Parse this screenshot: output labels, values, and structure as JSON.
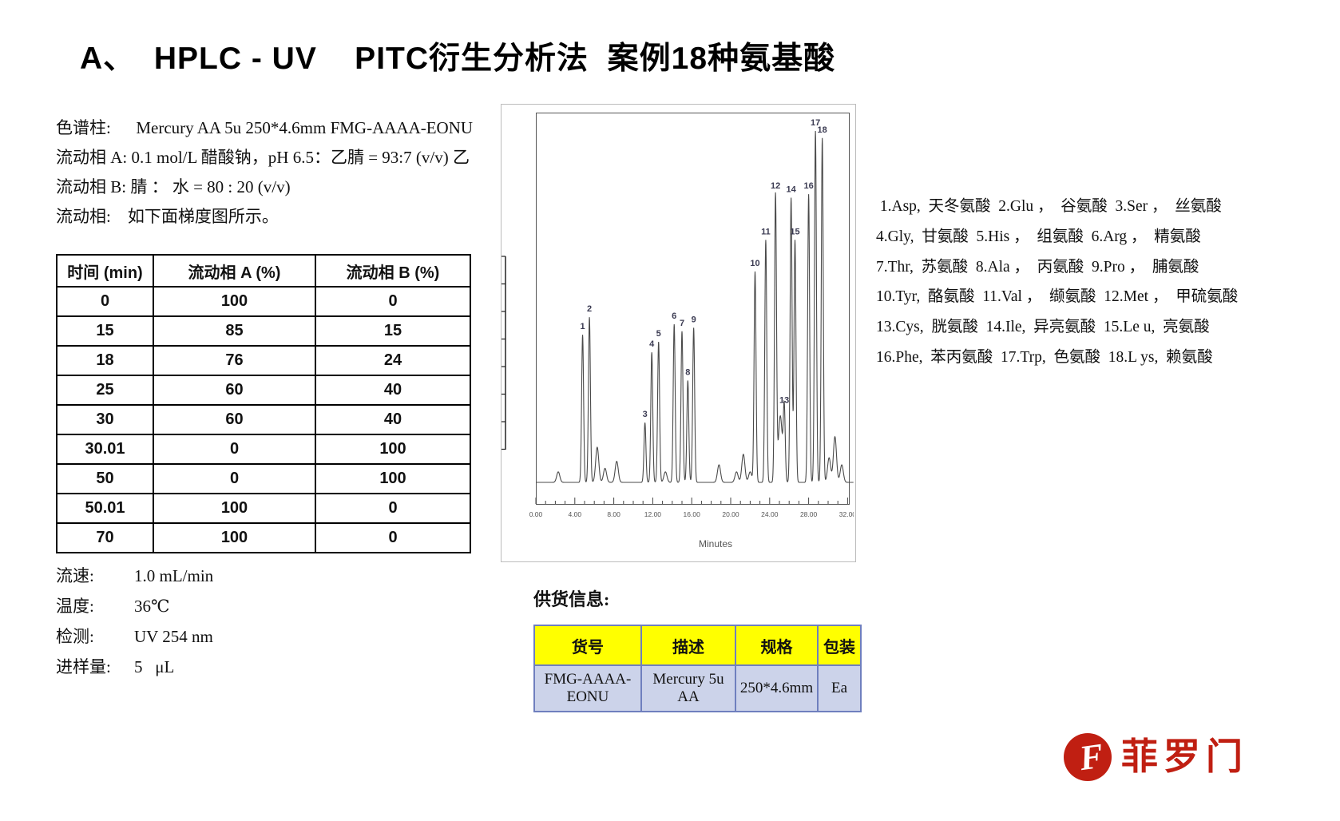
{
  "title": "A、  HPLC - UV    PITC衍生分析法  案例18种氨基酸",
  "conditions_top": [
    "色谱柱:      Mercury AA 5u 250*4.6mm FMG-AAAA-EONU",
    "流动相 A: 0.1 mol/L 醋酸钠，pH 6.5：乙腈 = 93:7 (v/v) 乙",
    "流动相 B: 腈 ： 水 = 80 : 20 (v/v)",
    "流动相:    如下面梯度图所示。"
  ],
  "gradient_table": {
    "headers": [
      "时间 (min)",
      "流动相 A (%)",
      "流动相 B (%)"
    ],
    "rows": [
      [
        "0",
        "100",
        "0"
      ],
      [
        "15",
        "85",
        "15"
      ],
      [
        "18",
        "76",
        "24"
      ],
      [
        "25",
        "60",
        "40"
      ],
      [
        "30",
        "60",
        "40"
      ],
      [
        "30.01",
        "0",
        "100"
      ],
      [
        "50",
        "0",
        "100"
      ],
      [
        "50.01",
        "100",
        "0"
      ],
      [
        "70",
        "100",
        "0"
      ]
    ]
  },
  "conditions_bottom": [
    {
      "label": "流速:",
      "value": "1.0 mL/min"
    },
    {
      "label": "温度:",
      "value": "36℃"
    },
    {
      "label": "检测:",
      "value": "UV 254 nm"
    },
    {
      "label": "进样量:",
      "value": "5   μL"
    }
  ],
  "chart_data": {
    "type": "line",
    "title": "",
    "xlabel": "Minutes",
    "ylabel": "",
    "xlim": [
      0,
      33
    ],
    "grid": false,
    "x_tick_labels": [
      "0.00",
      "4.00",
      "8.00",
      "12.00",
      "16.00",
      "20.00",
      "24.00",
      "28.00",
      "32.00"
    ],
    "x_tick_interval_min": 4,
    "peaks": [
      {
        "label": "1",
        "t": 4.8,
        "h": 0.42
      },
      {
        "label": "2",
        "t": 5.5,
        "h": 0.47
      },
      {
        "label": "3",
        "t": 11.2,
        "h": 0.17
      },
      {
        "label": "4",
        "t": 11.9,
        "h": 0.37
      },
      {
        "label": "5",
        "t": 12.6,
        "h": 0.4
      },
      {
        "label": "6",
        "t": 14.2,
        "h": 0.45
      },
      {
        "label": "7",
        "t": 15.0,
        "h": 0.43
      },
      {
        "label": "8",
        "t": 15.6,
        "h": 0.29
      },
      {
        "label": "9",
        "t": 16.2,
        "h": 0.44
      },
      {
        "label": "10",
        "t": 22.5,
        "h": 0.6
      },
      {
        "label": "11",
        "t": 23.6,
        "h": 0.69
      },
      {
        "label": "12",
        "t": 24.6,
        "h": 0.82
      },
      {
        "label": "13",
        "t": 25.5,
        "h": 0.21
      },
      {
        "label": "14",
        "t": 26.2,
        "h": 0.81
      },
      {
        "label": "15",
        "t": 26.6,
        "h": 0.69
      },
      {
        "label": "16",
        "t": 28.0,
        "h": 0.82
      },
      {
        "label": "17",
        "t": 28.7,
        "h": 1.0
      },
      {
        "label": "18",
        "t": 29.4,
        "h": 0.98
      }
    ],
    "unlabeled_bumps": [
      {
        "t": 2.3,
        "h": 0.03
      },
      {
        "t": 6.3,
        "h": 0.1
      },
      {
        "t": 7.1,
        "h": 0.04
      },
      {
        "t": 8.3,
        "h": 0.06
      },
      {
        "t": 13.3,
        "h": 0.03
      },
      {
        "t": 18.8,
        "h": 0.05
      },
      {
        "t": 20.6,
        "h": 0.03
      },
      {
        "t": 21.3,
        "h": 0.08
      },
      {
        "t": 22.0,
        "h": 0.03
      },
      {
        "t": 25.0,
        "h": 0.12
      },
      {
        "t": 25.2,
        "h": 0.11
      },
      {
        "t": 30.1,
        "h": 0.07
      },
      {
        "t": 30.7,
        "h": 0.13
      },
      {
        "t": 31.4,
        "h": 0.05
      }
    ],
    "line_color": "#4a4a4a",
    "peak_label_color": "#3b3b52"
  },
  "legend_lines": [
    " 1.Asp,  天冬氨酸  2.Glu ，  谷氨酸  3.Ser ，  丝氨酸",
    "4.Gly,  甘氨酸  5.His ，  组氨酸  6.Arg ，  精氨酸",
    "7.Thr,  苏氨酸  8.Ala ，  丙氨酸  9.Pro ，  脯氨酸",
    "10.Tyr,  酪氨酸  11.Val ，  缬氨酸  12.Met ，  甲硫氨酸",
    "13.Cys,  胱氨酸  14.Ile,  异亮氨酸  15.Le u,  亮氨酸",
    "16.Phe,  苯丙氨酸  17.Trp,  色氨酸  18.L ys,  赖氨酸"
  ],
  "supply": {
    "heading": "供货信息:",
    "headers": [
      "货号",
      "描述",
      "规格",
      "包装"
    ],
    "rows": [
      [
        "FMG-AAAA-EONU",
        "Mercury 5u AA",
        "250*4.6mm",
        "Ea"
      ]
    ],
    "header_bg": "#ffff00",
    "row_bg": "#ccd3ea",
    "border_color": "#6f7fbe"
  },
  "logo": {
    "text": "菲罗门",
    "color": "#c01f12",
    "mark": "stylized-F-in-red-circle"
  }
}
